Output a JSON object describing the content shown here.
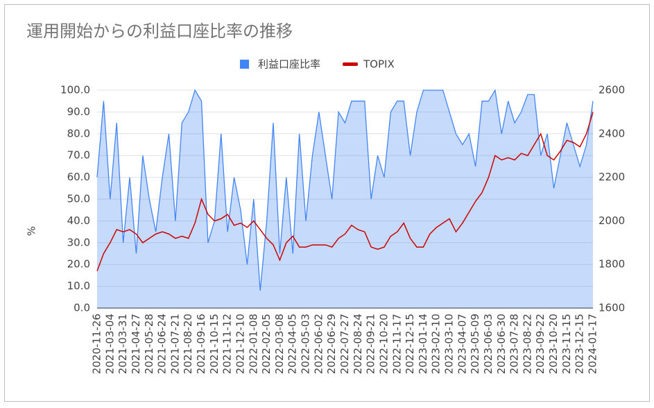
{
  "chart_data": {
    "type": "combo",
    "title": "運用開始からの利益口座比率の推移",
    "y_label": "%",
    "categories": [
      "2020-11-26",
      null,
      "2021-03-04",
      null,
      "2021-03-31",
      null,
      "2021-04-27",
      null,
      "2021-05-28",
      null,
      "2021-06-24",
      null,
      "2021-07-21",
      null,
      "2021-08-20",
      null,
      "2021-09-16",
      null,
      "2021-10-15",
      null,
      "2021-11-12",
      null,
      "2021-12-10",
      null,
      "2022-01-08",
      null,
      "2022-02-05",
      null,
      "2022-03-08",
      null,
      "2022-04-05",
      null,
      "2022-05-03",
      null,
      "2022-06-02",
      null,
      "2022-06-29",
      null,
      "2022-07-27",
      null,
      "2022-08-24",
      null,
      "2022-09-21",
      null,
      "2022-10-20",
      null,
      "2022-11-17",
      null,
      "2022-12-15",
      null,
      "2023-01-14",
      null,
      "2023-02-10",
      null,
      "2023-03-10",
      null,
      "2023-04-07",
      null,
      "2023-05-09",
      null,
      "2023-06-03",
      null,
      "2023-06-30",
      null,
      "2023-07-28",
      null,
      "2023-08-22",
      null,
      "2023-09-22",
      null,
      "2023-10-20",
      null,
      "2023-11-15",
      null,
      "2023-12-15",
      null,
      "2024-01-17"
    ],
    "series": [
      {
        "name": "利益口座比率",
        "type": "area",
        "color": "#4285f4",
        "axis": "y",
        "values": [
          60,
          95,
          50,
          85,
          30,
          60,
          25,
          70,
          50,
          35,
          60,
          80,
          40,
          85,
          90,
          100,
          95,
          30,
          40,
          80,
          35,
          60,
          45,
          20,
          50,
          8,
          40,
          85,
          25,
          60,
          25,
          80,
          40,
          70,
          90,
          70,
          50,
          90,
          85,
          95,
          95,
          95,
          50,
          70,
          60,
          90,
          95,
          95,
          70,
          90,
          100,
          100,
          100,
          100,
          90,
          80,
          75,
          80,
          65,
          95,
          95,
          100,
          80,
          95,
          85,
          90,
          98,
          98,
          70,
          80,
          55,
          70,
          85,
          75,
          65,
          75,
          95
        ]
      },
      {
        "name": "TOPIX",
        "type": "line",
        "color": "#cc0000",
        "axis": "y2",
        "values": [
          1770,
          1850,
          1900,
          1960,
          1950,
          1960,
          1940,
          1900,
          1920,
          1940,
          1950,
          1940,
          1920,
          1930,
          1920,
          1990,
          2100,
          2030,
          2000,
          2010,
          2030,
          1980,
          1990,
          1970,
          2000,
          1960,
          1920,
          1890,
          1820,
          1900,
          1930,
          1880,
          1880,
          1890,
          1890,
          1890,
          1880,
          1920,
          1940,
          1980,
          1960,
          1950,
          1880,
          1870,
          1880,
          1930,
          1950,
          1990,
          1920,
          1880,
          1880,
          1940,
          1970,
          1990,
          2010,
          1950,
          1990,
          2040,
          2090,
          2130,
          2200,
          2300,
          2280,
          2290,
          2280,
          2310,
          2300,
          2350,
          2400,
          2300,
          2280,
          2320,
          2370,
          2360,
          2340,
          2400,
          2500
        ]
      }
    ],
    "ylim": [
      0,
      100
    ],
    "yticks": [
      {
        "value": 0,
        "label": "0.0"
      },
      {
        "value": 10,
        "label": "10.0"
      },
      {
        "value": 20,
        "label": "20.0"
      },
      {
        "value": 30,
        "label": "30.0"
      },
      {
        "value": 40,
        "label": "40.0"
      },
      {
        "value": 50,
        "label": "50.0"
      },
      {
        "value": 60,
        "label": "60.0"
      },
      {
        "value": 70,
        "label": "70.0"
      },
      {
        "value": 80,
        "label": "80.0"
      },
      {
        "value": 90,
        "label": "90.0"
      },
      {
        "value": 100,
        "label": "100.0"
      }
    ],
    "y2lim": [
      1600,
      2600
    ],
    "y2ticks": [
      1600,
      1800,
      2000,
      2200,
      2400,
      2600
    ],
    "grid": true,
    "legend": "top"
  }
}
